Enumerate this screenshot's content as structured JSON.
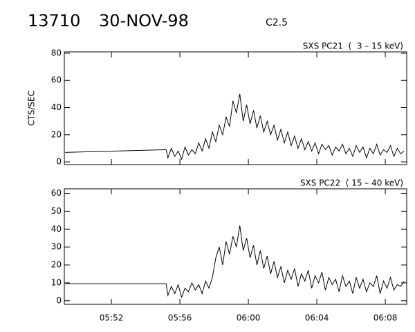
{
  "header": {
    "id": "13710",
    "date": "30-NOV-98",
    "class": "C2.5"
  },
  "chart_data": [
    {
      "type": "line",
      "title": "SXS PC21  (  3 – 15 keV)",
      "y_label": "CTS/SEC",
      "xlim": [
        349.25,
        369.25
      ],
      "ylim": [
        -2,
        81
      ],
      "yticks": [
        0,
        20,
        40,
        60,
        80
      ],
      "x": [
        349.3,
        355.2,
        355.3,
        355.5,
        355.7,
        355.9,
        356.1,
        356.3,
        356.5,
        356.7,
        356.9,
        357.1,
        357.3,
        357.5,
        357.7,
        357.9,
        358.1,
        358.3,
        358.5,
        358.7,
        358.9,
        359.1,
        359.3,
        359.5,
        359.7,
        359.9,
        360.1,
        360.3,
        360.5,
        360.7,
        360.9,
        361.1,
        361.3,
        361.5,
        361.7,
        361.9,
        362.1,
        362.3,
        362.5,
        362.7,
        362.9,
        363.1,
        363.3,
        363.5,
        363.7,
        363.9,
        364.1,
        364.3,
        364.5,
        364.7,
        364.9,
        365.1,
        365.3,
        365.5,
        365.7,
        365.9,
        366.1,
        366.3,
        366.5,
        366.7,
        366.9,
        367.1,
        367.3,
        367.5,
        367.7,
        367.9,
        368.1,
        368.3,
        368.5,
        368.7,
        368.9,
        369.1
      ],
      "series": [
        {
          "color": "#000000",
          "values": [
            7,
            9,
            3,
            10,
            4,
            8,
            2,
            11,
            5,
            9,
            6,
            14,
            8,
            17,
            10,
            22,
            15,
            27,
            20,
            33,
            26,
            45,
            36,
            50,
            30,
            42,
            28,
            38,
            25,
            34,
            22,
            30,
            20,
            27,
            16,
            24,
            14,
            22,
            12,
            19,
            10,
            17,
            9,
            15,
            8,
            14,
            6,
            13,
            9,
            12,
            5,
            11,
            8,
            13,
            6,
            10,
            4,
            12,
            7,
            11,
            3,
            10,
            6,
            13,
            5,
            9,
            7,
            12,
            4,
            10,
            6,
            8
          ]
        }
      ]
    },
    {
      "type": "line",
      "title": "SXS PC22  ( 15 – 40 keV)",
      "xlim": [
        349.25,
        369.25
      ],
      "ylim": [
        -2,
        62.5
      ],
      "yticks": [
        0,
        10,
        20,
        30,
        40,
        50,
        60
      ],
      "xticks": [
        {
          "value": 352,
          "label": "05:52"
        },
        {
          "value": 356,
          "label": "05:56"
        },
        {
          "value": 360,
          "label": "06:00"
        },
        {
          "value": 364,
          "label": "06:04"
        },
        {
          "value": 368,
          "label": "06:08"
        }
      ],
      "x": [
        349.3,
        355.2,
        355.3,
        355.5,
        355.7,
        355.9,
        356.1,
        356.3,
        356.5,
        356.7,
        356.9,
        357.1,
        357.3,
        357.5,
        357.7,
        357.9,
        358.1,
        358.3,
        358.5,
        358.7,
        358.9,
        359.1,
        359.3,
        359.5,
        359.7,
        359.9,
        360.1,
        360.3,
        360.5,
        360.7,
        360.9,
        361.1,
        361.3,
        361.5,
        361.7,
        361.9,
        362.1,
        362.3,
        362.5,
        362.7,
        362.9,
        363.1,
        363.3,
        363.5,
        363.7,
        363.9,
        364.1,
        364.3,
        364.5,
        364.7,
        364.9,
        365.1,
        365.3,
        365.5,
        365.7,
        365.9,
        366.1,
        366.3,
        366.5,
        366.7,
        366.9,
        367.1,
        367.3,
        367.5,
        367.7,
        367.9,
        368.1,
        368.3,
        368.5,
        368.7,
        368.9,
        369.1
      ],
      "series": [
        {
          "color": "#000000",
          "values": [
            9.5,
            9.5,
            3,
            8,
            4,
            9,
            2,
            7,
            5,
            10,
            6,
            9,
            4,
            11,
            7,
            13,
            24,
            30,
            20,
            33,
            26,
            36,
            30,
            42,
            28,
            35,
            24,
            31,
            20,
            28,
            18,
            25,
            15,
            22,
            13,
            19,
            10,
            17,
            12,
            18,
            8,
            15,
            11,
            17,
            7,
            14,
            10,
            16,
            6,
            13,
            9,
            12,
            5,
            14,
            8,
            11,
            4,
            13,
            7,
            12,
            5,
            10,
            8,
            14,
            4,
            11,
            7,
            13,
            6,
            9,
            8,
            11
          ]
        }
      ]
    }
  ]
}
